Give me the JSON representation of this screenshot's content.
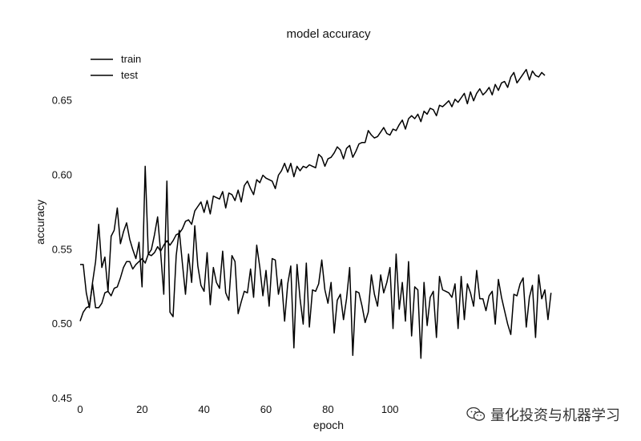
{
  "chart_data": {
    "type": "line",
    "title": "model accuracy",
    "xlabel": "epoch",
    "ylabel": "accuracy",
    "xlim": [
      0,
      150
    ],
    "ylim": [
      0.45,
      0.68
    ],
    "x_ticks": [
      0,
      20,
      40,
      60,
      80,
      100
    ],
    "x_tick_labels": [
      "0",
      "20",
      "40",
      "60",
      "80",
      "100"
    ],
    "y_ticks": [
      0.45,
      0.5,
      0.55,
      0.6,
      0.65
    ],
    "y_tick_labels": [
      "0.45",
      "0.50",
      "0.55",
      "0.60",
      "0.65"
    ],
    "grid": false,
    "legend_position": "top-left",
    "series": [
      {
        "name": "train",
        "color": "#000000",
        "values": [
          0.502,
          0.508,
          0.511,
          0.512,
          0.527,
          0.511,
          0.511,
          0.514,
          0.521,
          0.522,
          0.519,
          0.524,
          0.525,
          0.531,
          0.538,
          0.542,
          0.542,
          0.537,
          0.54,
          0.542,
          0.544,
          0.541,
          0.547,
          0.546,
          0.548,
          0.552,
          0.549,
          0.553,
          0.556,
          0.553,
          0.556,
          0.56,
          0.561,
          0.564,
          0.569,
          0.57,
          0.567,
          0.576,
          0.579,
          0.582,
          0.575,
          0.583,
          0.574,
          0.586,
          0.585,
          0.584,
          0.589,
          0.578,
          0.588,
          0.587,
          0.583,
          0.59,
          0.582,
          0.593,
          0.596,
          0.591,
          0.587,
          0.597,
          0.595,
          0.6,
          0.598,
          0.597,
          0.596,
          0.591,
          0.6,
          0.603,
          0.608,
          0.602,
          0.608,
          0.599,
          0.606,
          0.603,
          0.606,
          0.605,
          0.607,
          0.606,
          0.605,
          0.614,
          0.612,
          0.606,
          0.611,
          0.612,
          0.615,
          0.619,
          0.617,
          0.611,
          0.618,
          0.62,
          0.612,
          0.616,
          0.621,
          0.622,
          0.622,
          0.63,
          0.627,
          0.625,
          0.626,
          0.629,
          0.632,
          0.628,
          0.627,
          0.631,
          0.63,
          0.634,
          0.637,
          0.631,
          0.638,
          0.64,
          0.638,
          0.641,
          0.636,
          0.643,
          0.641,
          0.645,
          0.644,
          0.64,
          0.647,
          0.646,
          0.648,
          0.65,
          0.646,
          0.651,
          0.649,
          0.652,
          0.655,
          0.648,
          0.656,
          0.65,
          0.655,
          0.658,
          0.654,
          0.656,
          0.659,
          0.654,
          0.661,
          0.657,
          0.662,
          0.663,
          0.659,
          0.666,
          0.669,
          0.662,
          0.665,
          0.668,
          0.671,
          0.664,
          0.67,
          0.667,
          0.666,
          0.669,
          0.667
        ],
        "x_start": 0
      },
      {
        "name": "test",
        "color": "#000000",
        "values": [
          0.54,
          0.54,
          0.521,
          0.511,
          0.528,
          0.542,
          0.567,
          0.538,
          0.545,
          0.522,
          0.559,
          0.563,
          0.578,
          0.554,
          0.562,
          0.568,
          0.557,
          0.55,
          0.544,
          0.555,
          0.525,
          0.606,
          0.547,
          0.55,
          0.56,
          0.572,
          0.548,
          0.52,
          0.596,
          0.508,
          0.505,
          0.546,
          0.563,
          0.541,
          0.52,
          0.547,
          0.528,
          0.566,
          0.539,
          0.526,
          0.522,
          0.548,
          0.513,
          0.538,
          0.528,
          0.524,
          0.549,
          0.521,
          0.516,
          0.546,
          0.542,
          0.507,
          0.515,
          0.522,
          0.521,
          0.537,
          0.518,
          0.553,
          0.538,
          0.519,
          0.536,
          0.512,
          0.544,
          0.543,
          0.52,
          0.53,
          0.502,
          0.527,
          0.539,
          0.484,
          0.54,
          0.517,
          0.5,
          0.541,
          0.498,
          0.523,
          0.522,
          0.527,
          0.543,
          0.523,
          0.514,
          0.528,
          0.494,
          0.516,
          0.52,
          0.503,
          0.517,
          0.538,
          0.479,
          0.522,
          0.521,
          0.512,
          0.501,
          0.508,
          0.533,
          0.52,
          0.512,
          0.533,
          0.521,
          0.528,
          0.538,
          0.497,
          0.547,
          0.51,
          0.528,
          0.502,
          0.542,
          0.492,
          0.525,
          0.523,
          0.477,
          0.528,
          0.499,
          0.518,
          0.522,
          0.491,
          0.532,
          0.523,
          0.522,
          0.521,
          0.518,
          0.527,
          0.497,
          0.532,
          0.503,
          0.527,
          0.521,
          0.512,
          0.536,
          0.517,
          0.517,
          0.509,
          0.519,
          0.522,
          0.5,
          0.53,
          0.518,
          0.509,
          0.5,
          0.493,
          0.52,
          0.519,
          0.527,
          0.531,
          0.498,
          0.518,
          0.526,
          0.491,
          0.533,
          0.517,
          0.523,
          0.503,
          0.521
        ],
        "x_start": 0
      }
    ]
  },
  "watermark": {
    "text": "量化投资与机器学习",
    "icon": "wechat-icon"
  }
}
